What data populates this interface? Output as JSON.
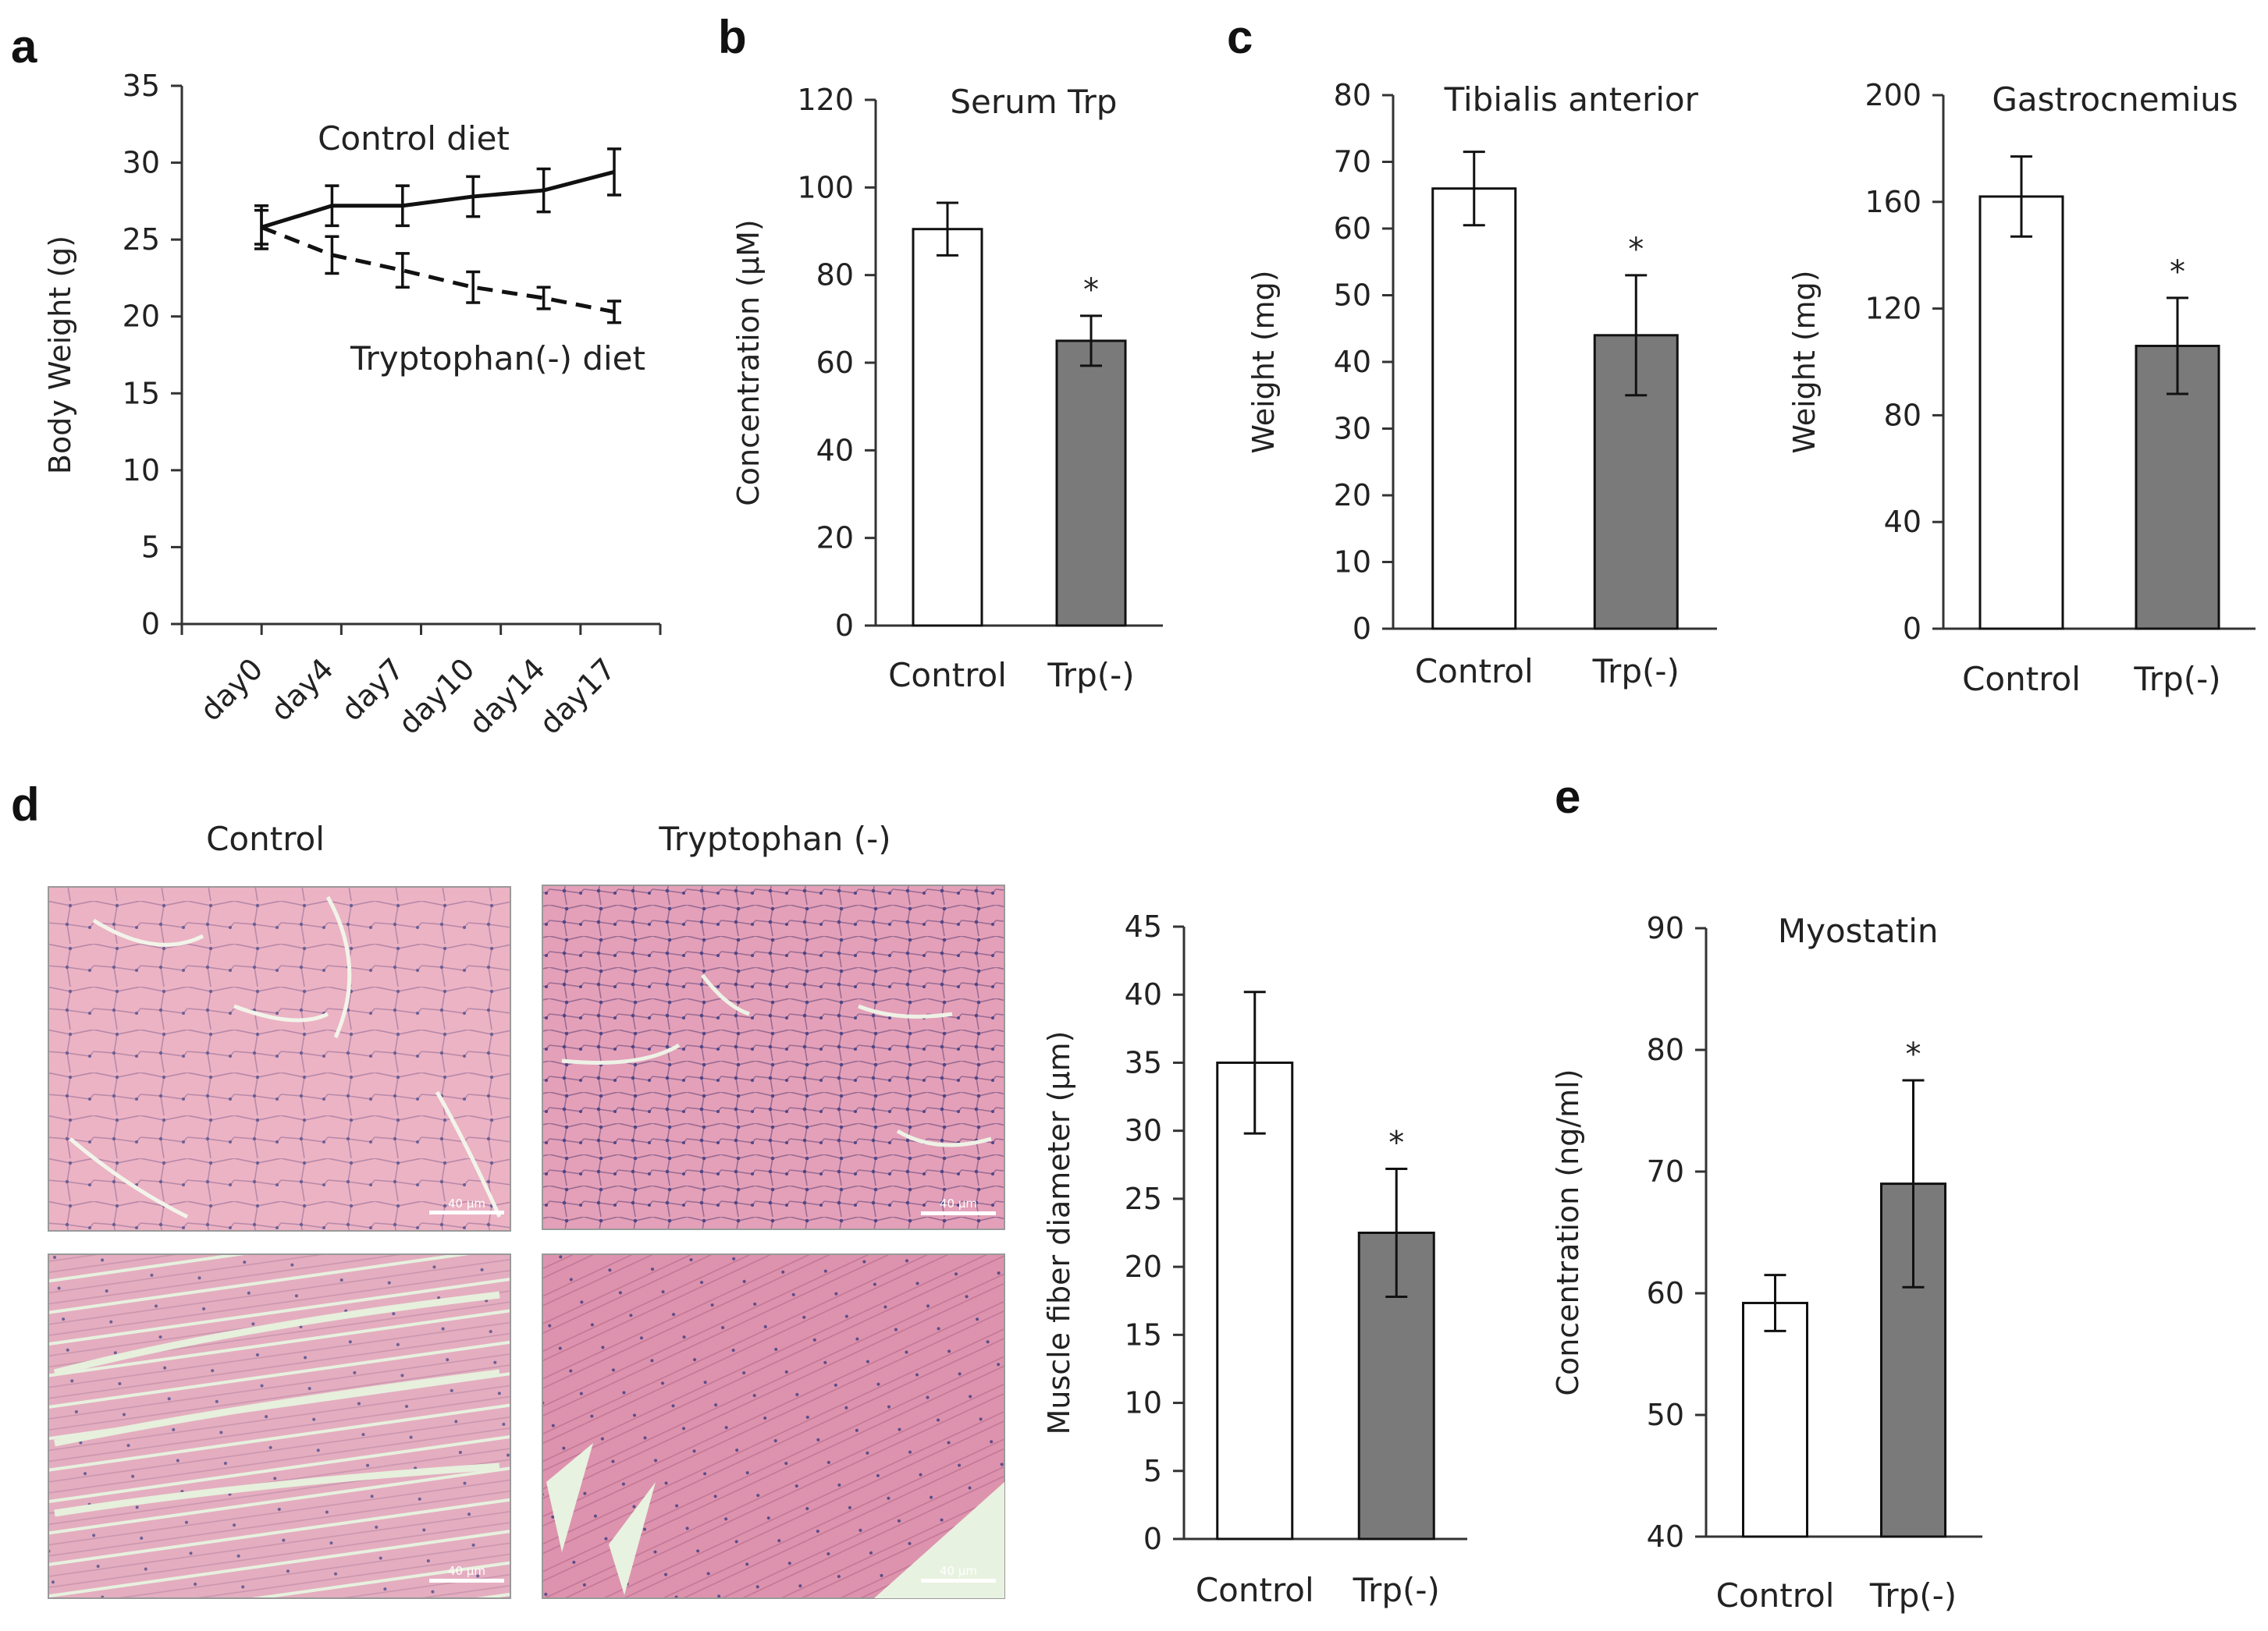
{
  "panels": {
    "a": "a",
    "b": "b",
    "c": "c",
    "d": "d",
    "e": "e"
  },
  "colors": {
    "control_bar": "#ffffff",
    "trp_bar": "#7a7a7a",
    "axis": "#333333",
    "tissue_pink": "#e9a9bd",
    "tissue_dark": "#d98aa3",
    "tissue_gap": "#e8f2e0"
  },
  "micrographs": {
    "control_title": "Control",
    "trp_title": "Tryptophan (-)",
    "scale_label": "40 µm",
    "images": [
      {
        "id": "control-cross-section",
        "tissue": "pink-cross"
      },
      {
        "id": "trp-cross-section",
        "tissue": "pink-cross-dense"
      },
      {
        "id": "control-longitudinal",
        "tissue": "pink-long"
      },
      {
        "id": "trp-longitudinal",
        "tissue": "pink-long-dense"
      }
    ]
  },
  "chart_data": [
    {
      "id": "a",
      "type": "line",
      "title": "",
      "ylabel": "Body Weight (g)",
      "xlabel": "",
      "x": [
        "day0",
        "day4",
        "day7",
        "day10",
        "day14",
        "day17"
      ],
      "ylim": [
        0,
        35
      ],
      "yticks": [
        0,
        5,
        10,
        15,
        20,
        25,
        30,
        35
      ],
      "series": [
        {
          "name": "Control diet",
          "style": "solid",
          "values": [
            25.8,
            27.2,
            27.2,
            27.8,
            28.2,
            29.4
          ],
          "errors": [
            1.4,
            1.3,
            1.3,
            1.3,
            1.4,
            1.5
          ]
        },
        {
          "name": "Tryptophan(-) diet",
          "style": "dashed",
          "values": [
            25.8,
            24.0,
            23.0,
            21.9,
            21.2,
            20.3
          ],
          "errors": [
            1.1,
            1.2,
            1.1,
            1.0,
            0.7,
            0.7
          ]
        }
      ]
    },
    {
      "id": "b",
      "type": "bar",
      "title": "Serum Trp",
      "ylabel": "Concentration (µM)",
      "categories": [
        "Control",
        "Trp(-)"
      ],
      "values": [
        90.5,
        65.0
      ],
      "errors": [
        6.0,
        5.7
      ],
      "significance": [
        "",
        "*"
      ],
      "ylim": [
        0,
        120
      ],
      "yticks": [
        0,
        20,
        40,
        60,
        80,
        100,
        120
      ]
    },
    {
      "id": "c1",
      "type": "bar",
      "title": "Tibialis anterior",
      "ylabel": "Weight (mg)",
      "categories": [
        "Control",
        "Trp(-)"
      ],
      "values": [
        66.0,
        44.0
      ],
      "errors": [
        5.5,
        9.0
      ],
      "significance": [
        "",
        "*"
      ],
      "ylim": [
        0,
        80
      ],
      "yticks": [
        0,
        10,
        20,
        30,
        40,
        50,
        60,
        70,
        80
      ]
    },
    {
      "id": "c2",
      "type": "bar",
      "title": "Gastrocnemius",
      "ylabel": "Weight (mg)",
      "categories": [
        "Control",
        "Trp(-)"
      ],
      "values": [
        162,
        106
      ],
      "errors": [
        15,
        18
      ],
      "significance": [
        "",
        "*"
      ],
      "ylim": [
        0,
        200
      ],
      "yticks": [
        0,
        40,
        80,
        120,
        160,
        200
      ]
    },
    {
      "id": "d",
      "type": "bar",
      "title": "",
      "ylabel": "Muscle fiber diameter (µm)",
      "categories": [
        "Control",
        "Trp(-)"
      ],
      "values": [
        35.0,
        22.5
      ],
      "errors": [
        5.2,
        4.7
      ],
      "significance": [
        "",
        "*"
      ],
      "ylim": [
        0,
        45
      ],
      "yticks": [
        0,
        5,
        10,
        15,
        20,
        25,
        30,
        35,
        40,
        45
      ]
    },
    {
      "id": "e",
      "type": "bar",
      "title": "Myostatin",
      "ylabel": "Concentration (ng/ml)",
      "categories": [
        "Control",
        "Trp(-)"
      ],
      "values": [
        59.2,
        69.0
      ],
      "errors": [
        2.3,
        8.5
      ],
      "significance": [
        "",
        "*"
      ],
      "ylim": [
        40,
        90
      ],
      "yticks": [
        40,
        50,
        60,
        70,
        80,
        90
      ]
    }
  ]
}
